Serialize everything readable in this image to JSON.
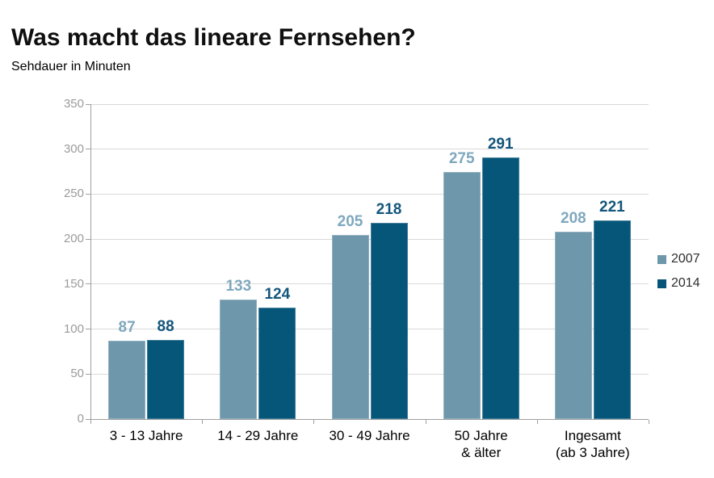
{
  "chart_data": {
    "type": "bar",
    "title": "Was macht das lineare Fernsehen?",
    "subtitle": "Sehdauer in Minuten",
    "categories": [
      "3 - 13 Jahre",
      "14 - 29 Jahre",
      "30 - 49 Jahre",
      "50 Jahre\n& älter",
      "Ingesamt\n(ab 3 Jahre)"
    ],
    "series": [
      {
        "name": "2007",
        "color": "#6E97AB",
        "label_color": "#7FA8BE",
        "values": [
          87,
          133,
          205,
          275,
          208
        ]
      },
      {
        "name": "2014",
        "color": "#06567A",
        "label_color": "#14567B",
        "values": [
          88,
          124,
          218,
          291,
          221
        ]
      }
    ],
    "ylim": [
      0,
      350
    ],
    "yticks": [
      0,
      50,
      100,
      150,
      200,
      250,
      300,
      350
    ],
    "grid": true,
    "legend_position": "right",
    "axis_color": "#A0A0A0",
    "grid_color": "#D9D9D9",
    "tick_label_color": "#9B9B9B"
  }
}
